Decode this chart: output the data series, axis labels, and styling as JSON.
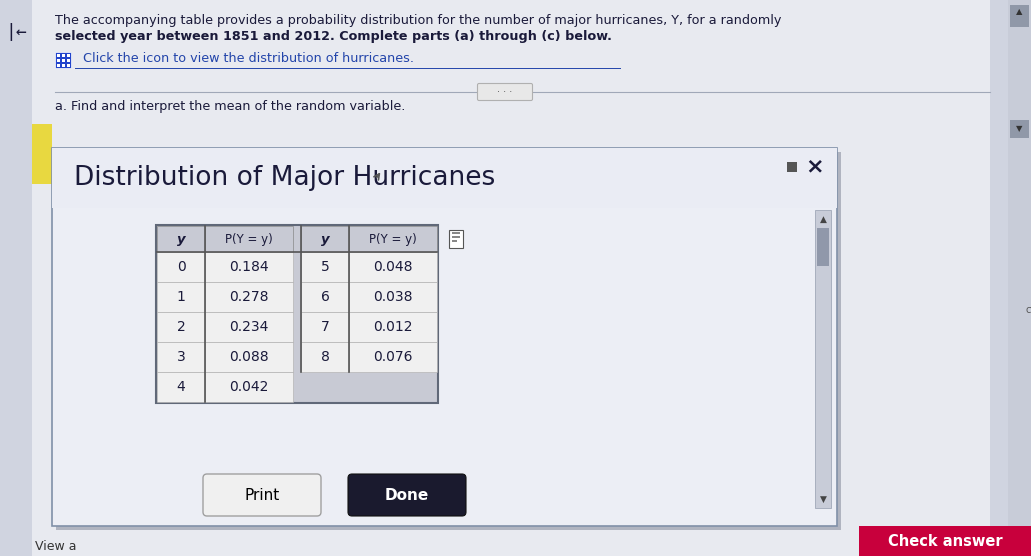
{
  "title_line1": "The accompanying table provides a probability distribution for the number of major hurricanes, Y, for a randomly",
  "title_line2": "selected year between 1851 and 2012. Complete parts (a) through (c) below.",
  "icon_text": "  Click the icon to view the distribution of hurricanes.",
  "part_a_text": "a. Find and interpret the mean of the random variable.",
  "dialog_title": "Distribution of Major Hurricanes",
  "col1_header_y": "y",
  "col1_header_p": "P(Y = y)",
  "col2_header_y": "y",
  "col2_header_p": "P(Y = y)",
  "col1_data": [
    [
      0,
      "0.184"
    ],
    [
      1,
      "0.278"
    ],
    [
      2,
      "0.234"
    ],
    [
      3,
      "0.088"
    ],
    [
      4,
      "0.042"
    ]
  ],
  "col2_data": [
    [
      5,
      "0.048"
    ],
    [
      6,
      "0.038"
    ],
    [
      7,
      "0.012"
    ],
    [
      8,
      "0.076"
    ]
  ],
  "print_btn_text": "Print",
  "done_btn_text": "Done",
  "check_btn_text": "Check answer",
  "view_text": "View a",
  "bg_top": "#e8eaf0",
  "bg_main": "#dce0ec",
  "dialog_bg": "#eceef5",
  "dialog_border": "#8090a8",
  "table_outer_bg": "#c8cad4",
  "table_header_bg": "#c8cad4",
  "table_cell_bg": "#f0f0f0",
  "scrollbar_bg": "#c0c4d0",
  "scrollbar_thumb": "#9098a8",
  "done_btn_color": "#1a1a2e",
  "check_btn_color": "#c8003c",
  "left_panel_bg": "#d0d4e0",
  "right_panel_bg": "#d0d4e0",
  "text_color": "#1a1a3a",
  "link_color": "#2244aa",
  "icon_bg": "#2244cc",
  "ellipsis_btn_bg": "#e8e8e8",
  "yellow_note": "#e8d840"
}
